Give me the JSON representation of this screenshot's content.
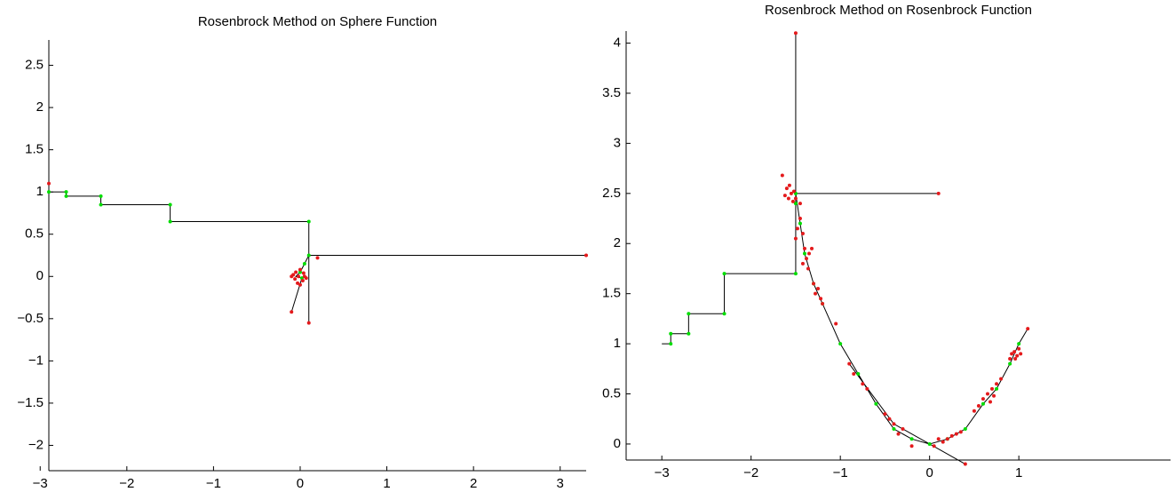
{
  "chart_data": [
    {
      "type": "line",
      "title": "Rosenbrock Method on Sphere Function",
      "xlim": [
        -2.9,
        3.3
      ],
      "ylim": [
        -2.3,
        2.8
      ],
      "xticks": [
        {
          "value": -3,
          "label": "−3"
        },
        {
          "value": -2,
          "label": "−2"
        },
        {
          "value": -1,
          "label": "−1"
        },
        0,
        1,
        2,
        3
      ],
      "yticks": [
        {
          "value": -2,
          "label": "−2"
        },
        {
          "value": -1.5,
          "label": "−1.5"
        },
        {
          "value": -1,
          "label": "−1"
        },
        {
          "value": -0.5,
          "label": "−0.5"
        },
        0,
        0.5,
        1,
        1.5,
        2,
        2.5
      ],
      "grid": false,
      "series": [
        {
          "type": "line",
          "color": "#000000",
          "x": [
            -2.9,
            -2.7,
            -2.7,
            -2.3,
            -2.3,
            -1.5,
            -1.5,
            0.1,
            0.1,
            3.3,
            null,
            0.1,
            0.1,
            null,
            0.1,
            0.05,
            0.0,
            -0.05,
            0.02,
            -0.1,
            null,
            -2.9,
            -2.9
          ],
          "values": [
            1,
            1,
            0.95,
            0.95,
            0.85,
            0.85,
            0.65,
            0.65,
            0.25,
            0.25,
            null,
            0.25,
            -0.55,
            null,
            0.25,
            0.15,
            0.05,
            0.0,
            -0.02,
            -0.42,
            null,
            1,
            1.1
          ]
        },
        {
          "type": "scatter",
          "color": "#00dd00",
          "x": [
            -2.9,
            -2.7,
            -2.7,
            -2.3,
            -2.3,
            -1.5,
            -1.5,
            0.1,
            0.1,
            0.05,
            0.0,
            0.02
          ],
          "values": [
            1,
            1,
            0.95,
            0.95,
            0.85,
            0.85,
            0.65,
            0.65,
            0.25,
            0.15,
            0.05,
            -0.02
          ]
        },
        {
          "type": "scatter",
          "color": "#e41a1c",
          "x": [
            -2.9,
            3.3,
            0.1,
            0.2,
            -0.1,
            -0.08,
            -0.05,
            0.03,
            -0.02,
            0.05,
            -0.06,
            0.0,
            0.04,
            -0.03,
            0.07,
            0.0,
            -0.1
          ],
          "values": [
            1.1,
            0.25,
            -0.55,
            0.22,
            -0.42,
            0.02,
            0.05,
            -0.05,
            0.0,
            0.0,
            -0.03,
            0.08,
            0.04,
            -0.08,
            -0.02,
            -0.1,
            0.0
          ]
        }
      ]
    },
    {
      "type": "line",
      "title": "Rosenbrock Method on Rosenbrock Function",
      "xlim": [
        -3.4,
        2.7
      ],
      "ylim": [
        -0.16,
        4.12
      ],
      "xticks": [
        {
          "value": -3,
          "label": "−3"
        },
        {
          "value": -2,
          "label": "−2"
        },
        {
          "value": -1,
          "label": "−1"
        },
        0,
        1
      ],
      "yticks": [
        0,
        0.5,
        1,
        1.5,
        2,
        2.5,
        3,
        3.5,
        4
      ],
      "grid": false,
      "series": [
        {
          "type": "line",
          "color": "#000000",
          "x": [
            -3,
            -2.9,
            -2.9,
            -2.7,
            -2.7,
            -2.3,
            -2.3,
            -1.5,
            -1.5,
            -1.5,
            0.1,
            null,
            -1.5,
            -1.45,
            -1.4,
            -1.3,
            -1.2,
            -1.0,
            -0.8,
            -0.6,
            -0.4,
            -0.2,
            0,
            0.2,
            0.4,
            0.6,
            0.75,
            0.9,
            1,
            1.1,
            null,
            -0.9,
            -0.4,
            0.4
          ],
          "values": [
            1,
            1,
            1.1,
            1.1,
            1.3,
            1.3,
            1.7,
            1.7,
            4.1,
            2.5,
            2.5,
            null,
            2.5,
            2.2,
            1.9,
            1.6,
            1.4,
            1.0,
            0.7,
            0.4,
            0.15,
            0.05,
            0,
            0.05,
            0.15,
            0.4,
            0.55,
            0.8,
            1,
            1.15,
            null,
            0.8,
            0.2,
            -0.2
          ]
        },
        {
          "type": "scatter",
          "color": "#00dd00",
          "x": [
            -2.9,
            -2.9,
            -2.7,
            -2.7,
            -2.3,
            -2.3,
            -1.5,
            -1.5,
            -1.5,
            -1.45,
            -1.4,
            -1.3,
            -1.2,
            -1.0,
            -0.8,
            -0.6,
            -0.4,
            -0.2,
            0,
            0.2,
            0.4,
            0.6,
            0.75,
            0.9,
            1
          ],
          "values": [
            1,
            1.1,
            1.1,
            1.3,
            1.3,
            1.7,
            1.7,
            2.5,
            2.4,
            2.2,
            1.9,
            1.6,
            1.4,
            1.0,
            0.7,
            0.4,
            0.15,
            0.05,
            0,
            0.05,
            0.15,
            0.4,
            0.55,
            0.8,
            1
          ]
        },
        {
          "type": "scatter",
          "color": "#e41a1c",
          "x": [
            -1.6,
            -1.55,
            -1.58,
            -1.52,
            -1.62,
            -1.5,
            -1.57,
            -1.65,
            -1.45,
            -1.53,
            -1.45,
            -1.48,
            -1.42,
            -1.5,
            -1.4,
            -1.35,
            -1.38,
            -1.42,
            -1.32,
            -1.36,
            -1.3,
            -1.25,
            -1.28,
            -1.2,
            -1.22,
            -1.05,
            -0.9,
            -0.85,
            -0.75,
            -0.7,
            -0.5,
            -0.45,
            -0.4,
            -0.35,
            -0.3,
            -0.2,
            0.05,
            0.1,
            0.15,
            0.2,
            0.25,
            0.3,
            0.35,
            0.4,
            0.1,
            -1.5,
            0.6,
            0.65,
            0.7,
            0.72,
            0.68,
            0.75,
            0.8,
            0.9,
            0.92,
            0.95,
            0.98,
            1.0,
            0.96,
            1.02,
            1.1,
            0.55,
            0.5
          ],
          "values": [
            2.55,
            2.5,
            2.45,
            2.52,
            2.48,
            2.45,
            2.58,
            2.68,
            2.4,
            2.42,
            2.25,
            2.15,
            2.1,
            2.05,
            1.95,
            1.9,
            1.85,
            1.8,
            1.95,
            1.75,
            1.6,
            1.55,
            1.5,
            1.4,
            1.45,
            1.2,
            0.8,
            0.7,
            0.6,
            0.55,
            0.3,
            0.25,
            0.2,
            0.1,
            0.15,
            -0.02,
            -0.02,
            0.05,
            0.02,
            0.05,
            0.08,
            0.1,
            0.12,
            -0.2,
            2.5,
            4.1,
            0.45,
            0.5,
            0.55,
            0.48,
            0.42,
            0.6,
            0.65,
            0.85,
            0.9,
            0.92,
            0.88,
            0.95,
            0.85,
            0.9,
            1.15,
            0.38,
            0.33
          ]
        }
      ]
    }
  ]
}
